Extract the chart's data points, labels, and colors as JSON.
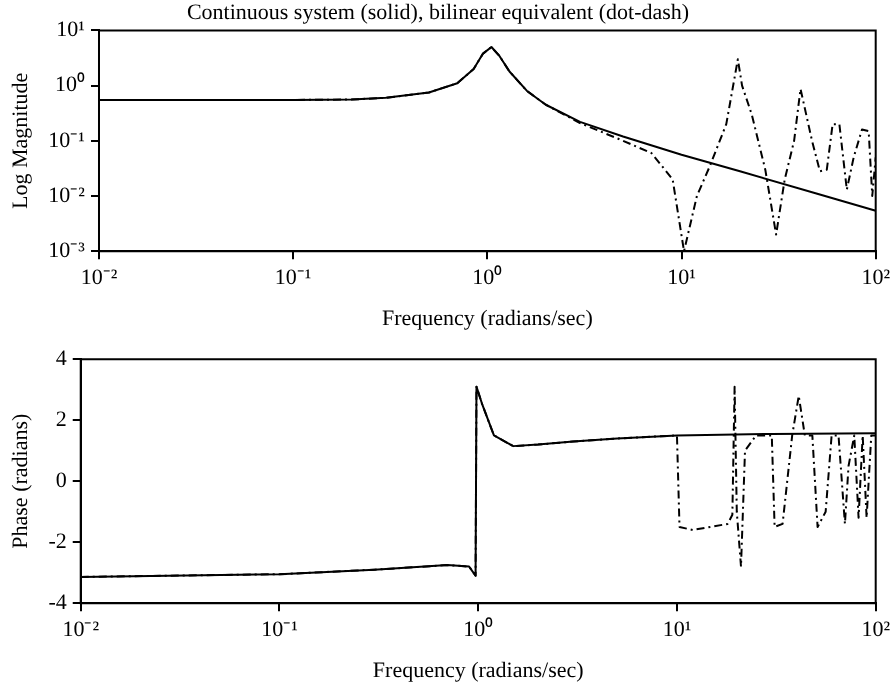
{
  "chart_data": [
    {
      "type": "line",
      "title": "Continuous system (solid), bilinear equivalent (dot-dash)",
      "xlabel": "Frequency (radians/sec)",
      "ylabel": "Log Magnitude",
      "log": "xy",
      "grid": false,
      "legend": false,
      "marker": "none",
      "xlim": [
        0.01,
        100
      ],
      "xticks": [
        {
          "value": 0.01,
          "label": "10⁻²"
        },
        {
          "value": 0.1,
          "label": "10⁻¹"
        },
        {
          "value": 1,
          "label": "10⁰"
        },
        {
          "value": 10,
          "label": "10¹"
        },
        {
          "value": 100,
          "label": "10²"
        }
      ],
      "ylim": [
        0.001,
        10
      ],
      "yticks": [
        {
          "value": 0.001,
          "label": "10⁻³"
        },
        {
          "value": 0.01,
          "label": "10⁻²"
        },
        {
          "value": 0.1,
          "label": "10⁻¹"
        },
        {
          "value": 1,
          "label": "10⁰"
        },
        {
          "value": 10,
          "label": "10¹"
        }
      ],
      "series": [
        {
          "color": "#000000",
          "line_style": "solid",
          "x": [
            0.01,
            0.1,
            0.2,
            0.3,
            0.5,
            0.7,
            0.85,
            0.95,
            1.05,
            1.15,
            1.3,
            1.6,
            2,
            3,
            5,
            10,
            20,
            50,
            100
          ],
          "values": [
            0.55,
            0.55,
            0.56,
            0.6,
            0.75,
            1.1,
            2,
            3.8,
            5,
            3.5,
            1.8,
            0.8,
            0.45,
            0.22,
            0.12,
            0.056,
            0.028,
            0.011,
            0.0054
          ]
        },
        {
          "color": "#000000",
          "line_style": "dashed",
          "x": [
            0.01,
            0.1,
            0.2,
            0.3,
            0.5,
            0.7,
            0.85,
            0.95,
            1.05,
            1.15,
            1.3,
            1.6,
            2,
            3,
            5,
            7,
            9,
            10.3,
            12,
            14,
            17,
            19.5,
            20.5,
            23,
            27,
            30.7,
            34,
            38,
            41,
            47,
            51.6,
            56,
            60,
            65,
            71,
            77,
            85,
            92,
            96,
            100
          ],
          "values": [
            0.55,
            0.55,
            0.56,
            0.6,
            0.75,
            1.1,
            2,
            3.8,
            5,
            3.5,
            1.8,
            0.8,
            0.45,
            0.21,
            0.1,
            0.06,
            0.02,
            0.001,
            0.01,
            0.035,
            0.2,
            3,
            1,
            0.3,
            0.03,
            0.002,
            0.02,
            0.1,
            0.87,
            0.1,
            0.028,
            0.03,
            0.2,
            0.2,
            0.013,
            0.05,
            0.16,
            0.15,
            0.01,
            0.05
          ]
        }
      ]
    },
    {
      "type": "line",
      "xlabel": "Frequency (radians/sec)",
      "ylabel": "Phase (radians)",
      "log": "x",
      "grid": false,
      "legend": false,
      "marker": "none",
      "xlim": [
        0.01,
        100
      ],
      "xticks": [
        {
          "value": 0.01,
          "label": "10⁻²"
        },
        {
          "value": 0.1,
          "label": "10⁻¹"
        },
        {
          "value": 1,
          "label": "10⁰"
        },
        {
          "value": 10,
          "label": "10¹"
        },
        {
          "value": 100,
          "label": "10²"
        }
      ],
      "ylim": [
        -4,
        4
      ],
      "yticks": [
        -4,
        -2,
        0,
        2,
        4
      ],
      "series": [
        {
          "color": "#000000",
          "line_style": "solid",
          "x": [
            0.01,
            0.1,
            0.3,
            0.7,
            0.9,
            0.97,
            0.98,
            1.05,
            1.2,
            1.5,
            2,
            3,
            5,
            10,
            30,
            100
          ],
          "values": [
            -3.14,
            -3.05,
            -2.9,
            -2.75,
            -2.8,
            -3.1,
            3.1,
            2.5,
            1.5,
            1.15,
            1.2,
            1.3,
            1.4,
            1.5,
            1.55,
            1.57
          ]
        },
        {
          "color": "#000000",
          "line_style": "dashed",
          "x": [
            0.01,
            0.1,
            0.3,
            0.7,
            0.9,
            0.97,
            0.98,
            1.05,
            1.2,
            1.5,
            2,
            3,
            5,
            10,
            10.3,
            12,
            18,
            19,
            19.5,
            20,
            21,
            22,
            25,
            30,
            31,
            34,
            38,
            41,
            44,
            48,
            51,
            56,
            60,
            65,
            70,
            73,
            78,
            82,
            86,
            90,
            95,
            100
          ],
          "values": [
            -3.14,
            -3.05,
            -2.9,
            -2.75,
            -2.8,
            -3.1,
            3.1,
            2.5,
            1.5,
            1.15,
            1.2,
            1.3,
            1.4,
            1.5,
            -1.5,
            -1.6,
            -1.4,
            -1.1,
            3.1,
            -1,
            -2.8,
            1,
            1.5,
            1.5,
            -1.5,
            -1.4,
            1.5,
            2.8,
            1.5,
            1.5,
            -1.5,
            -1,
            1.5,
            1.5,
            -1.4,
            0.5,
            1.5,
            -1.2,
            1.5,
            -1.2,
            1.5,
            1.5
          ]
        }
      ]
    }
  ]
}
